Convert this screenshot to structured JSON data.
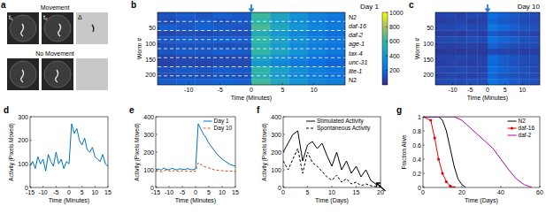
{
  "chart_data": [
    {
      "type": "image",
      "panel_label": "a",
      "rows": [
        {
          "title": "Movement",
          "frame_labels": [
            "t₁",
            "t₂",
            "Δ"
          ]
        },
        {
          "title": "No Movement"
        }
      ]
    },
    {
      "type": "heatmap",
      "panel_label": "b",
      "title": "Day 1",
      "xlabel": "Time (Minutes)",
      "ylabel": "Worm #",
      "xlim": [
        -15,
        15
      ],
      "xticks": [
        -10,
        -5,
        0,
        5,
        10
      ],
      "ylim": [
        0,
        232
      ],
      "yticks": [
        50,
        100,
        150,
        200
      ],
      "stimulus": 0,
      "groups": [
        "N2",
        "daf-16",
        "daf-2",
        "age-1",
        "tax-4",
        "unc-31",
        "lite-1",
        "N2"
      ],
      "group_bounds": [
        29,
        58,
        87,
        116,
        145,
        174,
        203
      ],
      "color_range": [
        0,
        1000
      ],
      "color_ticks": [
        200,
        400,
        600,
        800,
        1000
      ],
      "cells": [
        [
          120,
          150,
          130,
          160,
          140,
          620,
          480,
          380,
          300,
          260
        ],
        [
          100,
          130,
          150,
          120,
          140,
          580,
          450,
          350,
          290,
          240
        ],
        [
          160,
          140,
          170,
          150,
          130,
          650,
          500,
          400,
          320,
          270
        ],
        [
          90,
          110,
          100,
          120,
          110,
          520,
          420,
          330,
          260,
          220
        ],
        [
          140,
          160,
          150,
          170,
          160,
          600,
          470,
          370,
          300,
          250
        ],
        [
          110,
          120,
          130,
          110,
          120,
          560,
          430,
          340,
          280,
          230
        ],
        [
          130,
          150,
          140,
          160,
          150,
          610,
          490,
          390,
          310,
          260
        ],
        [
          80,
          90,
          100,
          90,
          100,
          480,
          380,
          300,
          240,
          200
        ],
        [
          70,
          90,
          80,
          100,
          90,
          420,
          330,
          260,
          210,
          180
        ],
        [
          120,
          140,
          130,
          150,
          140,
          590,
          460,
          360,
          290,
          250
        ],
        [
          100,
          120,
          110,
          130,
          120,
          540,
          420,
          330,
          270,
          230
        ],
        [
          150,
          170,
          160,
          180,
          170,
          630,
          500,
          400,
          330,
          280
        ]
      ]
    },
    {
      "type": "heatmap",
      "panel_label": "c",
      "title": "Day 10",
      "xlabel": "Time (Minutes)",
      "ylabel": "Worm #",
      "xlim": [
        -15,
        15
      ],
      "xticks": [
        -10,
        -5,
        0,
        5,
        10
      ],
      "ylim": [
        0,
        232
      ],
      "yticks": [
        50,
        100,
        150,
        200
      ],
      "stimulus": 0,
      "color_range": [
        0,
        1000
      ],
      "cells": [
        [
          80,
          90,
          70,
          100,
          90,
          220,
          170,
          140,
          120,
          110
        ],
        [
          60,
          70,
          80,
          60,
          70,
          180,
          140,
          120,
          100,
          90
        ],
        [
          100,
          90,
          110,
          100,
          90,
          250,
          190,
          160,
          130,
          120
        ],
        [
          50,
          60,
          50,
          70,
          60,
          150,
          120,
          100,
          90,
          80
        ],
        [
          90,
          100,
          90,
          110,
          100,
          230,
          180,
          150,
          120,
          110
        ],
        [
          70,
          60,
          80,
          70,
          60,
          170,
          130,
          110,
          100,
          90
        ],
        [
          40,
          50,
          40,
          50,
          50,
          90,
          80,
          70,
          60,
          60
        ],
        [
          80,
          70,
          90,
          80,
          70,
          200,
          150,
          130,
          110,
          100
        ],
        [
          60,
          80,
          70,
          60,
          80,
          190,
          150,
          120,
          100,
          90
        ],
        [
          90,
          80,
          100,
          90,
          80,
          210,
          170,
          140,
          120,
          100
        ],
        [
          70,
          90,
          80,
          70,
          90,
          180,
          140,
          120,
          110,
          100
        ],
        [
          100,
          110,
          100,
          120,
          110,
          240,
          190,
          150,
          130,
          120
        ]
      ]
    },
    {
      "type": "line",
      "panel_label": "d",
      "xlabel": "Time (Minutes)",
      "ylabel": "Activity (Pixels Moved)",
      "xlim": [
        -15,
        15
      ],
      "xticks": [
        -15,
        -10,
        -5,
        0,
        5,
        10,
        15
      ],
      "ylim": [
        0,
        300
      ],
      "yticks": [
        0,
        100,
        200,
        300
      ],
      "x": [
        -15,
        -14,
        -13,
        -12,
        -11,
        -10,
        -9,
        -8,
        -7,
        -6,
        -5,
        -4,
        -3,
        -2,
        -1,
        0,
        1,
        2,
        3,
        4,
        5,
        6,
        7,
        8,
        9,
        10,
        11,
        12,
        13,
        14,
        15
      ],
      "series": [
        {
          "color": "#0072bd",
          "line_style": "solid",
          "values": [
            90,
            110,
            80,
            130,
            100,
            120,
            70,
            140,
            110,
            90,
            150,
            100,
            120,
            80,
            110,
            100,
            270,
            230,
            250,
            200,
            180,
            210,
            160,
            150,
            170,
            130,
            120,
            110,
            140,
            100,
            90
          ]
        }
      ]
    },
    {
      "type": "line",
      "panel_label": "e",
      "xlabel": "Time (Minutes)",
      "ylabel": "Activity (Pixels Moved)",
      "xlim": [
        -15,
        15
      ],
      "xticks": [
        -15,
        -10,
        -5,
        0,
        5,
        10,
        15
      ],
      "ylim": [
        0,
        400
      ],
      "yticks": [
        0,
        100,
        200,
        300,
        400
      ],
      "legend": "upper right",
      "x": [
        -15,
        -14,
        -13,
        -12,
        -11,
        -10,
        -9,
        -8,
        -7,
        -6,
        -5,
        -4,
        -3,
        -2,
        -1,
        0,
        1,
        2,
        3,
        4,
        5,
        6,
        7,
        8,
        9,
        10,
        11,
        12,
        13,
        14,
        15
      ],
      "series": [
        {
          "name": "Day 1",
          "color": "#0072bd",
          "line_style": "solid",
          "values": [
            100,
            105,
            98,
            110,
            102,
            100,
            108,
            104,
            99,
            106,
            103,
            101,
            107,
            102,
            100,
            105,
            360,
            330,
            300,
            280,
            250,
            230,
            210,
            190,
            175,
            160,
            150,
            140,
            130,
            125,
            120
          ]
        },
        {
          "name": "Day 10",
          "color": "#d95319",
          "line_style": "dashed",
          "values": [
            90,
            95,
            88,
            92,
            100,
            94,
            90,
            96,
            93,
            89,
            95,
            92,
            94,
            90,
            93,
            91,
            140,
            130,
            120,
            115,
            110,
            105,
            100,
            98,
            96,
            95,
            94,
            92,
            93,
            91,
            90
          ]
        }
      ]
    },
    {
      "type": "line",
      "panel_label": "f",
      "xlabel": "Time (Days)",
      "ylabel": "Activity (Pixels Moved)",
      "xlim": [
        0,
        20
      ],
      "xticks": [
        0,
        5,
        10,
        15,
        20
      ],
      "ylim": [
        0,
        400
      ],
      "yticks": [
        0,
        100,
        200,
        300,
        400
      ],
      "legend": "upper right",
      "annotation_arrow": {
        "x": 19,
        "y": 30
      },
      "x": [
        0,
        1,
        2,
        3,
        4,
        5,
        6,
        7,
        8,
        9,
        10,
        11,
        12,
        13,
        14,
        15,
        16,
        17,
        18,
        19,
        20
      ],
      "series": [
        {
          "name": "Stimulated Activity",
          "color": "#000000",
          "line_style": "solid",
          "values": [
            200,
            250,
            300,
            320,
            150,
            240,
            260,
            220,
            250,
            180,
            120,
            200,
            100,
            150,
            80,
            120,
            60,
            100,
            40,
            20,
            10
          ]
        },
        {
          "name": "Spontaneous Activity",
          "color": "#000000",
          "line_style": "dashed",
          "values": [
            150,
            100,
            160,
            220,
            80,
            200,
            140,
            120,
            90,
            60,
            40,
            70,
            30,
            50,
            20,
            30,
            10,
            20,
            10,
            5,
            0
          ]
        }
      ]
    },
    {
      "type": "line",
      "panel_label": "g",
      "xlabel": "Time (Days)",
      "ylabel": "Fraction Alive",
      "xlim": [
        0,
        60
      ],
      "xticks": [
        0,
        20,
        40,
        60
      ],
      "ylim": [
        0,
        1
      ],
      "yticks": [
        0,
        0.2,
        0.4,
        0.6,
        0.8,
        1
      ],
      "legend": "upper right",
      "series": [
        {
          "name": "N2",
          "color": "#000000",
          "line_style": "solid",
          "x": [
            0,
            8,
            10,
            12,
            14,
            16,
            18,
            20,
            22
          ],
          "values": [
            1,
            1,
            0.95,
            0.8,
            0.55,
            0.3,
            0.12,
            0.04,
            0
          ]
        },
        {
          "name": "daf-16",
          "color": "#e00000",
          "line_style": "solid",
          "marker": "circle",
          "x": [
            0,
            4,
            6,
            8,
            10,
            12,
            14,
            16
          ],
          "values": [
            1,
            0.95,
            0.7,
            0.4,
            0.2,
            0.08,
            0.02,
            0
          ]
        },
        {
          "name": "daf-2",
          "color": "#b000b0",
          "line_style": "solid",
          "x": [
            0,
            16,
            20,
            24,
            28,
            32,
            36,
            40,
            44,
            48,
            52,
            56
          ],
          "values": [
            1,
            1,
            0.95,
            0.85,
            0.75,
            0.65,
            0.55,
            0.4,
            0.25,
            0.12,
            0.04,
            0
          ]
        }
      ]
    }
  ]
}
